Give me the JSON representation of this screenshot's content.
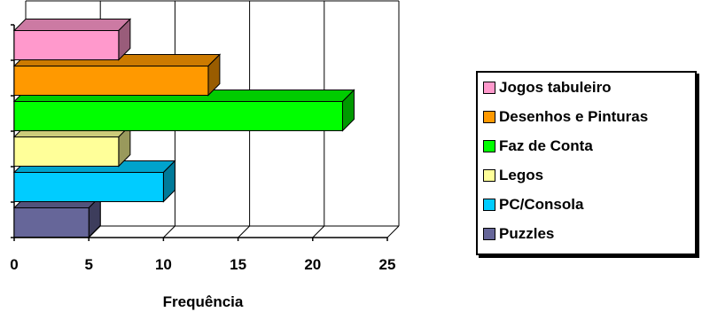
{
  "chart_data": {
    "type": "bar",
    "orientation": "horizontal",
    "style": "3d",
    "categories": [
      "Puzzles",
      "PC/Consola",
      "Legos",
      "Faz de Conta",
      "Desenhos e Pinturas",
      "Jogos tabuleiro"
    ],
    "values": [
      5,
      10,
      7,
      22,
      13,
      7
    ],
    "colors": [
      "#666699",
      "#00ccff",
      "#ffff99",
      "#00ff00",
      "#ff9900",
      "#ff99cc"
    ],
    "xlabel": "Frequência",
    "xlim": [
      0,
      25
    ],
    "xticks": [
      0,
      5,
      10,
      15,
      20,
      25
    ],
    "grid": true,
    "legend_position": "right"
  },
  "legend": {
    "items": [
      {
        "label": "Jogos tabuleiro",
        "color": "#ff99cc"
      },
      {
        "label": "Desenhos e Pinturas",
        "color": "#ff9900"
      },
      {
        "label": "Faz de Conta",
        "color": "#00ff00"
      },
      {
        "label": "Legos",
        "color": "#ffff99"
      },
      {
        "label": "PC/Consola",
        "color": "#00ccff"
      },
      {
        "label": "Puzzles",
        "color": "#666699"
      }
    ]
  }
}
